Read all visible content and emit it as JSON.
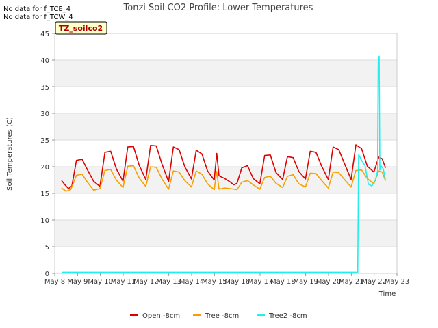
{
  "no_data_messages": [
    "No data for f_TCE_4",
    "No data for f_TCW_4"
  ],
  "tag_label": "TZ_soilco2",
  "colors": {
    "open": "#dd0000",
    "tree": "#f5a000",
    "tree2": "#22eeee",
    "band": "#f2f2f2",
    "grid": "#dddddd"
  },
  "chart_data": {
    "type": "line",
    "title": "Tonzi Soil CO2 Profile: Lower Temperatures",
    "xlabel": "Time",
    "ylabel": "Soil Temperatures (C)",
    "xlim": [
      "May 8",
      "May 23"
    ],
    "ylim": [
      0,
      45
    ],
    "x_ticks": [
      "May 8",
      "May 9",
      "May 10",
      "May 11",
      "May 12",
      "May 13",
      "May 14",
      "May 15",
      "May 16",
      "May 17",
      "May 18",
      "May 19",
      "May 20",
      "May 21",
      "May 22",
      "May 23"
    ],
    "y_ticks": [
      0,
      5,
      10,
      15,
      20,
      25,
      30,
      35,
      40,
      45
    ],
    "grid": true,
    "legend_position": "bottom",
    "series": [
      {
        "name": "Open -8cm",
        "x": [
          0.3,
          0.45,
          0.6,
          0.75,
          0.95,
          1.2,
          1.45,
          1.7,
          1.98,
          2.2,
          2.45,
          2.7,
          2.99,
          3.2,
          3.45,
          3.7,
          3.99,
          4.2,
          4.45,
          4.7,
          4.99,
          5.2,
          5.45,
          5.7,
          5.99,
          6.2,
          6.45,
          6.7,
          6.99,
          7.1,
          7.2,
          7.45,
          7.7,
          7.85,
          7.99,
          8.2,
          8.45,
          8.7,
          8.99,
          9.2,
          9.45,
          9.7,
          9.99,
          10.2,
          10.45,
          10.7,
          10.99,
          11.2,
          11.45,
          11.7,
          11.99,
          12.2,
          12.45,
          12.7,
          12.99,
          13.2,
          13.45,
          13.7,
          13.99,
          14.2,
          14.35,
          14.5
        ],
        "y": [
          17.4,
          16.6,
          15.9,
          16.4,
          21.2,
          21.4,
          19.3,
          17.3,
          16.3,
          22.7,
          22.9,
          19.6,
          17.3,
          23.7,
          23.8,
          20.3,
          17.6,
          24.0,
          23.9,
          20.5,
          17.2,
          23.7,
          23.2,
          20.0,
          17.7,
          23.1,
          22.4,
          19.2,
          17.5,
          22.5,
          18.3,
          17.8,
          17.1,
          16.6,
          16.9,
          19.8,
          20.2,
          17.8,
          16.8,
          22.1,
          22.2,
          18.9,
          17.6,
          21.9,
          21.7,
          19.1,
          17.7,
          22.9,
          22.7,
          20.1,
          17.6,
          23.7,
          23.2,
          20.6,
          17.6,
          24.1,
          23.4,
          20.1,
          19.0,
          21.8,
          21.5,
          19.8
        ]
      },
      {
        "name": "Tree -8cm",
        "x": [
          0.3,
          0.5,
          0.7,
          0.95,
          1.2,
          1.45,
          1.7,
          1.98,
          2.2,
          2.45,
          2.7,
          2.99,
          3.2,
          3.45,
          3.7,
          3.99,
          4.2,
          4.45,
          4.7,
          4.99,
          5.2,
          5.45,
          5.7,
          5.99,
          6.2,
          6.45,
          6.7,
          6.99,
          7.1,
          7.2,
          7.45,
          7.7,
          7.99,
          8.2,
          8.45,
          8.7,
          8.99,
          9.2,
          9.45,
          9.7,
          9.99,
          10.2,
          10.45,
          10.7,
          10.99,
          11.2,
          11.45,
          11.7,
          11.99,
          12.2,
          12.45,
          12.7,
          12.99,
          13.2,
          13.45,
          13.7,
          13.99,
          14.2,
          14.35,
          14.5
        ],
        "y": [
          16.0,
          15.4,
          15.7,
          18.4,
          18.6,
          17.0,
          15.6,
          15.9,
          19.3,
          19.5,
          17.5,
          16.1,
          20.1,
          20.2,
          17.9,
          16.3,
          20.0,
          19.9,
          17.7,
          15.8,
          19.2,
          19.0,
          17.4,
          16.2,
          19.2,
          18.6,
          16.8,
          15.7,
          19.1,
          15.8,
          16.0,
          15.9,
          15.7,
          17.1,
          17.4,
          16.6,
          15.8,
          18.0,
          18.2,
          16.9,
          16.1,
          18.2,
          18.5,
          16.8,
          16.2,
          18.8,
          18.7,
          17.4,
          16.0,
          19.0,
          18.9,
          17.6,
          16.2,
          19.3,
          19.4,
          17.8,
          16.8,
          19.2,
          19.0,
          17.4
        ]
      },
      {
        "name": "Tree2 -8cm",
        "x": [
          0.3,
          13.28,
          13.32,
          13.45,
          13.6,
          13.75,
          13.9,
          14.05,
          14.15,
          14.18,
          14.22,
          14.25,
          14.3,
          14.4,
          14.5
        ],
        "y": [
          0.2,
          0.2,
          22.3,
          21.2,
          20.2,
          16.7,
          16.4,
          17.4,
          19.2,
          40.5,
          40.7,
          19.4,
          20.2,
          19.6,
          17.4
        ]
      }
    ]
  }
}
